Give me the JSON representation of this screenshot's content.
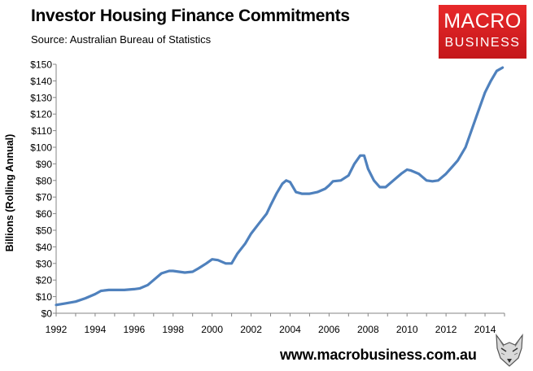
{
  "header": {
    "title": "Investor Housing Finance Commitments",
    "source": "Source: Australian Bureau of Statistics"
  },
  "logo": {
    "line1": "MACRO",
    "line2": "BUSINESS"
  },
  "footer": {
    "url": "www.macrobusiness.com.au"
  },
  "colors": {
    "line": "#4f81bd",
    "logo_red": "#d81f26",
    "axis": "#868686"
  },
  "chart_data": {
    "type": "line",
    "title": "Investor Housing Finance Commitments",
    "subtitle": "Source: Australian Bureau of Statistics",
    "xlabel": "",
    "ylabel": "Billions (Rolling Annual)",
    "xlim": [
      1992,
      2015
    ],
    "ylim": [
      0,
      150
    ],
    "grid": false,
    "legend": "none",
    "x_ticks": [
      "1992",
      "1994",
      "1996",
      "1998",
      "2000",
      "2002",
      "2004",
      "2006",
      "2008",
      "2010",
      "2012",
      "2014"
    ],
    "y_ticks": [
      "$0",
      "$10",
      "$20",
      "$30",
      "$40",
      "$50",
      "$60",
      "$70",
      "$80",
      "$90",
      "$100",
      "$110",
      "$120",
      "$130",
      "$140",
      "$150"
    ],
    "series": [
      {
        "x": [
          1992.0,
          1992.5,
          1993.0,
          1993.5,
          1994.0,
          1994.3,
          1994.7,
          1995.0,
          1995.5,
          1996.0,
          1996.3,
          1996.7,
          1997.0,
          1997.4,
          1997.8,
          1998.0,
          1998.3,
          1998.6,
          1999.0,
          1999.3,
          1999.7,
          2000.0,
          2000.3,
          2000.7,
          2001.0,
          2001.3,
          2001.7,
          2002.0,
          2002.4,
          2002.8,
          2003.0,
          2003.3,
          2003.6,
          2003.8,
          2004.0,
          2004.3,
          2004.6,
          2005.0,
          2005.4,
          2005.8,
          2006.0,
          2006.2,
          2006.6,
          2007.0,
          2007.3,
          2007.6,
          2007.8,
          2008.0,
          2008.3,
          2008.6,
          2008.9,
          2009.3,
          2009.7,
          2010.0,
          2010.2,
          2010.6,
          2011.0,
          2011.3,
          2011.6,
          2012.0,
          2012.3,
          2012.6,
          2013.0,
          2013.3,
          2013.6,
          2014.0,
          2014.3,
          2014.6,
          2014.9
        ],
        "values": [
          5,
          6,
          7,
          9,
          11.5,
          13.5,
          14,
          14,
          14,
          14.5,
          15,
          17,
          20,
          24,
          25.5,
          25.5,
          25,
          24.5,
          25,
          27,
          30,
          32.5,
          32,
          30,
          30,
          36,
          42,
          48,
          54,
          60,
          65,
          72,
          78,
          80,
          79,
          73,
          72,
          72,
          73,
          75,
          77,
          79.5,
          80,
          83,
          90,
          95,
          95,
          87,
          80,
          76,
          76,
          80,
          84,
          86.5,
          86,
          84,
          80,
          79.5,
          80,
          84,
          88,
          92,
          100,
          110,
          120,
          133,
          140,
          146,
          148
        ]
      }
    ]
  }
}
